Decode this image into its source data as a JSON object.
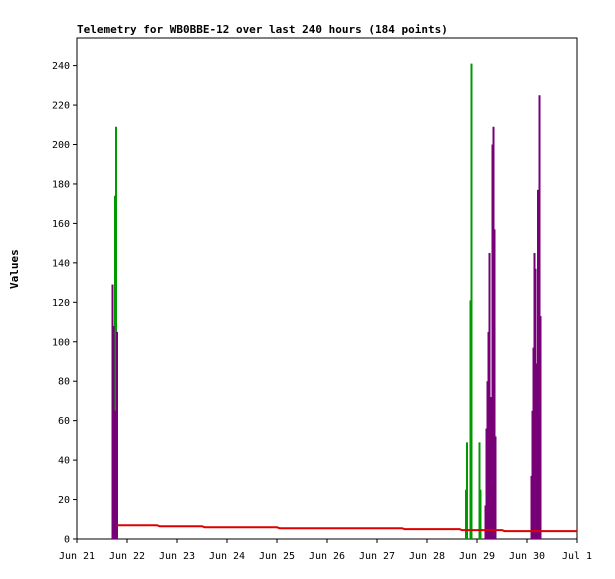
{
  "chart_data": {
    "type": "bar",
    "title": "Telemetry for WB0BBE-12 over last 240 hours (184 points)",
    "xlabel": "",
    "ylabel": "Values",
    "ylim": [
      0,
      254
    ],
    "yticks": [
      0,
      20,
      40,
      60,
      80,
      100,
      120,
      140,
      160,
      180,
      200,
      220,
      240
    ],
    "xlim": [
      "Jun 21",
      "Jul 1"
    ],
    "xticks": [
      "Jun 21",
      "Jun 22",
      "Jun 23",
      "Jun 24",
      "Jun 25",
      "Jun 26",
      "Jun 27",
      "Jun 28",
      "Jun 29",
      "Jun 30",
      "Jul 1"
    ],
    "grid": false,
    "legend": "none",
    "series": [
      {
        "color": "#009900",
        "points": [
          {
            "x": 0.74,
            "y": 35
          },
          {
            "x": 0.76,
            "y": 174
          },
          {
            "x": 0.78,
            "y": 209
          },
          {
            "x": 7.78,
            "y": 25
          },
          {
            "x": 7.8,
            "y": 49
          },
          {
            "x": 7.87,
            "y": 121
          },
          {
            "x": 7.89,
            "y": 241
          },
          {
            "x": 8.05,
            "y": 49
          },
          {
            "x": 8.07,
            "y": 25
          }
        ]
      },
      {
        "color": "#770077",
        "points": [
          {
            "x": 0.71,
            "y": 129
          },
          {
            "x": 0.73,
            "y": 108
          },
          {
            "x": 0.77,
            "y": 65
          },
          {
            "x": 0.8,
            "y": 105
          },
          {
            "x": 8.17,
            "y": 17
          },
          {
            "x": 8.19,
            "y": 56
          },
          {
            "x": 8.21,
            "y": 80
          },
          {
            "x": 8.23,
            "y": 105
          },
          {
            "x": 8.25,
            "y": 145
          },
          {
            "x": 8.27,
            "y": 72
          },
          {
            "x": 8.31,
            "y": 200
          },
          {
            "x": 8.33,
            "y": 209
          },
          {
            "x": 8.35,
            "y": 157
          },
          {
            "x": 8.37,
            "y": 52
          },
          {
            "x": 9.09,
            "y": 32
          },
          {
            "x": 9.11,
            "y": 65
          },
          {
            "x": 9.13,
            "y": 97
          },
          {
            "x": 9.15,
            "y": 145
          },
          {
            "x": 9.17,
            "y": 137
          },
          {
            "x": 9.2,
            "y": 89
          },
          {
            "x": 9.22,
            "y": 177
          },
          {
            "x": 9.25,
            "y": 225
          },
          {
            "x": 9.27,
            "y": 113
          }
        ]
      },
      {
        "color": "#dd0000",
        "points": [
          {
            "x": 0.8,
            "y": 7
          },
          {
            "x": 1.6,
            "y": 7
          },
          {
            "x": 1.65,
            "y": 6.5
          },
          {
            "x": 2.5,
            "y": 6.5
          },
          {
            "x": 2.55,
            "y": 6
          },
          {
            "x": 4.0,
            "y": 6
          },
          {
            "x": 4.05,
            "y": 5.5
          },
          {
            "x": 6.5,
            "y": 5.5
          },
          {
            "x": 6.55,
            "y": 5
          },
          {
            "x": 7.65,
            "y": 5
          },
          {
            "x": 7.7,
            "y": 4.5
          },
          {
            "x": 8.5,
            "y": 4.5
          },
          {
            "x": 8.55,
            "y": 4
          },
          {
            "x": 10.0,
            "y": 4
          }
        ]
      }
    ]
  }
}
